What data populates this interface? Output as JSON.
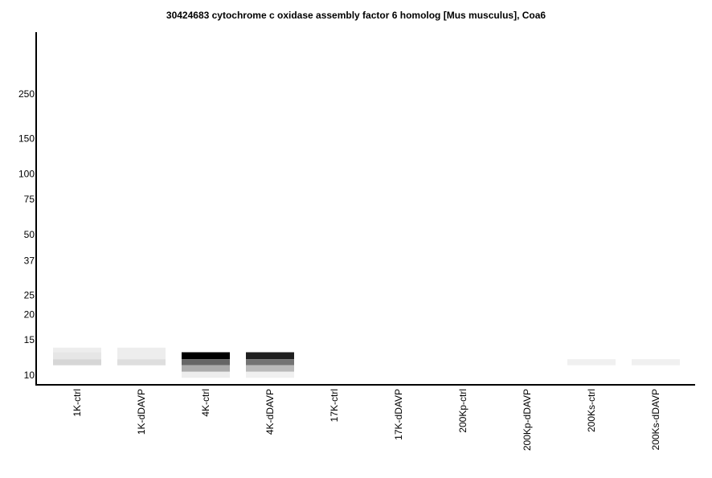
{
  "chart_data": {
    "type": "heatmap",
    "title": "30424683 cytochrome c oxidase assembly factor 6 homolog [Mus musculus], Coa6",
    "y_scale": "log",
    "y_ticks": [
      "250",
      "150",
      "100",
      "75",
      "50",
      "37",
      "25",
      "20",
      "15",
      "10"
    ],
    "y_tick_values": [
      250,
      150,
      100,
      75,
      50,
      37,
      25,
      20,
      15,
      10
    ],
    "lanes": [
      "1K-ctrl",
      "1K-dDAVP",
      "4K-ctrl",
      "4K-dDAVP",
      "17K-ctrl",
      "17K-dDAVP",
      "200Kp-ctrl",
      "200Kp-dDAVP",
      "200Ks-ctrl",
      "200Ks-dDAVP"
    ],
    "bands": [
      {
        "lane": 0,
        "from_kda": 13.7,
        "to_kda": 13.0,
        "intensity": 0.07
      },
      {
        "lane": 0,
        "from_kda": 13.0,
        "to_kda": 12.0,
        "intensity": 0.1
      },
      {
        "lane": 0,
        "from_kda": 12.0,
        "to_kda": 11.2,
        "intensity": 0.16
      },
      {
        "lane": 1,
        "from_kda": 13.7,
        "to_kda": 12.0,
        "intensity": 0.07
      },
      {
        "lane": 1,
        "from_kda": 12.0,
        "to_kda": 11.2,
        "intensity": 0.13
      },
      {
        "lane": 2,
        "from_kda": 13.0,
        "to_kda": 12.0,
        "intensity": 1.0
      },
      {
        "lane": 2,
        "from_kda": 12.0,
        "to_kda": 11.2,
        "intensity": 0.6
      },
      {
        "lane": 2,
        "from_kda": 11.2,
        "to_kda": 10.4,
        "intensity": 0.33
      },
      {
        "lane": 2,
        "from_kda": 10.4,
        "to_kda": 9.7,
        "intensity": 0.07
      },
      {
        "lane": 3,
        "from_kda": 13.0,
        "to_kda": 12.0,
        "intensity": 0.88
      },
      {
        "lane": 3,
        "from_kda": 12.0,
        "to_kda": 11.2,
        "intensity": 0.55
      },
      {
        "lane": 3,
        "from_kda": 11.2,
        "to_kda": 10.4,
        "intensity": 0.27
      },
      {
        "lane": 3,
        "from_kda": 10.4,
        "to_kda": 9.7,
        "intensity": 0.06
      },
      {
        "lane": 8,
        "from_kda": 12.0,
        "to_kda": 11.2,
        "intensity": 0.06
      },
      {
        "lane": 9,
        "from_kda": 12.0,
        "to_kda": 11.2,
        "intensity": 0.06
      }
    ]
  }
}
